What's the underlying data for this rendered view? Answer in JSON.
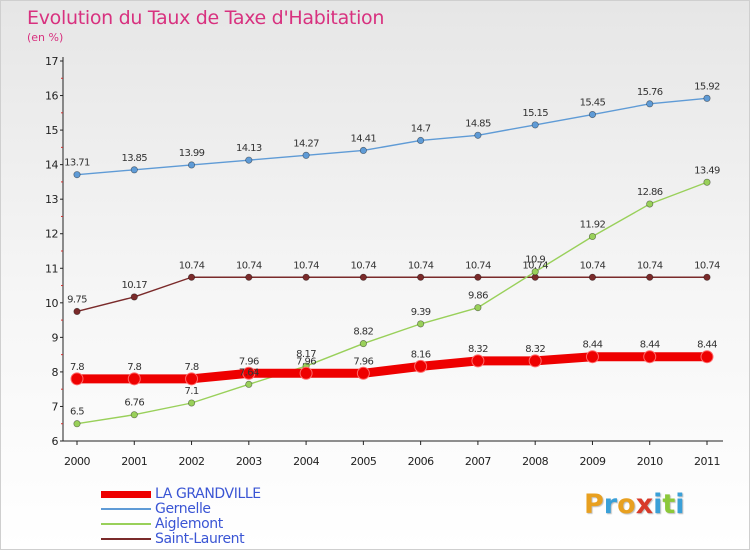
{
  "header": {
    "title": "Evolution du Taux de Taxe d'Habitation",
    "subtitle": "(en %)"
  },
  "brand": {
    "letters": [
      "P",
      "r",
      "o",
      "x",
      "i",
      "t",
      "i"
    ],
    "colors": [
      "#e8a020",
      "#3aa0d8",
      "#e8a020",
      "#d83a2a",
      "#3aa0d8",
      "#8cc83a",
      "#3aa0d8"
    ]
  },
  "chart_data": {
    "type": "line",
    "title": "Evolution du Taux de Taxe d'Habitation",
    "subtitle": "(en %)",
    "xlabel": "",
    "ylabel": "",
    "x": [
      "2000",
      "2001",
      "2002",
      "2003",
      "2004",
      "2005",
      "2006",
      "2007",
      "2008",
      "2009",
      "2010",
      "2011"
    ],
    "ylim": [
      6,
      17
    ],
    "yticks": [
      6,
      7,
      8,
      9,
      10,
      11,
      12,
      13,
      14,
      15,
      16,
      17
    ],
    "grid": false,
    "legend_position": "bottom-left",
    "series": [
      {
        "name": "LA GRANDVILLE",
        "color": "#ee0000",
        "values": [
          7.8,
          7.8,
          7.8,
          7.96,
          7.96,
          7.96,
          8.16,
          8.32,
          8.32,
          8.44,
          8.44,
          8.44
        ],
        "labels": [
          "7.8",
          "7.8",
          "7.8",
          "7.96",
          "7.96",
          "7.96",
          "8.16",
          "8.32",
          "8.32",
          "8.44",
          "8.44",
          "8.44"
        ]
      },
      {
        "name": "Gernelle",
        "color": "#5f9bd6",
        "values": [
          13.71,
          13.85,
          13.99,
          14.13,
          14.27,
          14.41,
          14.7,
          14.85,
          15.15,
          15.45,
          15.76,
          15.92
        ],
        "labels": [
          "13.71",
          "13.85",
          "13.99",
          "14.13",
          "14.27",
          "14.41",
          "14.7",
          "14.85",
          "15.15",
          "15.45",
          "15.76",
          "15.92"
        ]
      },
      {
        "name": "Aiglemont",
        "color": "#99d05a",
        "values": [
          6.5,
          6.76,
          7.1,
          7.64,
          8.17,
          8.82,
          9.39,
          9.86,
          10.9,
          11.92,
          12.86,
          13.49
        ],
        "labels": [
          "6.5",
          "6.76",
          "7.1",
          "7.64",
          "8.17",
          "8.82",
          "9.39",
          "9.86",
          "10.9",
          "11.92",
          "12.86",
          "13.49"
        ]
      },
      {
        "name": "Saint-Laurent",
        "color": "#7a2a2a",
        "values": [
          9.75,
          10.17,
          10.74,
          10.74,
          10.74,
          10.74,
          10.74,
          10.74,
          10.74,
          10.74,
          10.74,
          10.74
        ],
        "labels": [
          "9.75",
          "10.17",
          "10.74",
          "10.74",
          "10.74",
          "10.74",
          "10.74",
          "10.74",
          "10.74",
          "10.74",
          "10.74",
          "10.74"
        ]
      }
    ]
  }
}
